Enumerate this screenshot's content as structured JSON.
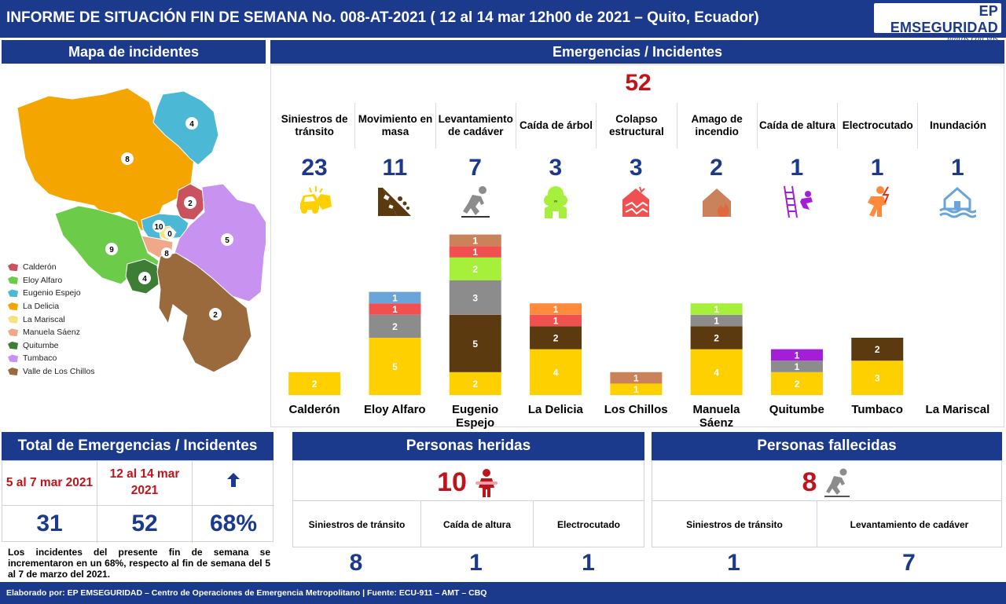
{
  "header": {
    "title": "INFORME DE SITUACIÓN FIN DE SEMANA No. 008-AT-2021 ( 12 al 14 mar 12h00 de 2021 – Quito, Ecuador)",
    "logo_text": "EP EMSEGURIDAD",
    "logo_signature": "juntos con vos"
  },
  "map": {
    "title": "Mapa de incidentes",
    "regions": [
      {
        "name": "La Delicia",
        "count": "8",
        "color": "#f5a500"
      },
      {
        "name": "Eugenio Espejo",
        "count": "4",
        "color": "#4bb8d6"
      },
      {
        "name": "Calderón",
        "count": "2",
        "color": "#c8525e"
      },
      {
        "name": "Eloy Alfaro",
        "count": "9",
        "color": "#6ccc4a"
      },
      {
        "name": "Tumbaco",
        "count": "5",
        "color": "#c792f0"
      },
      {
        "name": "Quitumbe",
        "count": "4",
        "color": "#3e7d35"
      },
      {
        "name": "Valle de Los Chillos",
        "count": "2",
        "color": "#9a6a3c"
      },
      {
        "name": "Manuela Sáenz",
        "count": "8",
        "color": "#f0a888"
      },
      {
        "name": "La Mariscal",
        "count": "0",
        "color": "#f5e27a"
      },
      {
        "name": "Eugenio Espejo centro",
        "count": "10",
        "color": "#4bb8d6"
      }
    ],
    "legend": [
      {
        "label": "Calderón",
        "color": "#c8525e"
      },
      {
        "label": "Eloy Alfaro",
        "color": "#6ccc4a"
      },
      {
        "label": "Eugenio Espejo",
        "color": "#4bb8d6"
      },
      {
        "label": "La Delicia",
        "color": "#f5a500"
      },
      {
        "label": "La Mariscal",
        "color": "#f5e27a"
      },
      {
        "label": "Manuela Sáenz",
        "color": "#f0a888"
      },
      {
        "label": "Quitumbe",
        "color": "#3e7d35"
      },
      {
        "label": "Tumbaco",
        "color": "#c792f0"
      },
      {
        "label": "Valle de Los Chillos",
        "color": "#9a6a3c"
      }
    ]
  },
  "emergencies": {
    "title": "Emergencias / Incidentes",
    "total": "52",
    "categories": [
      {
        "label": "Siniestros de tránsito",
        "count": "23",
        "icon": "car-crash-icon",
        "color": "#ffd000"
      },
      {
        "label": "Movimiento en masa",
        "count": "11",
        "icon": "landslide-icon",
        "color": "#5b3a10"
      },
      {
        "label": "Levantamiento de cadáver",
        "count": "7",
        "icon": "fallen-person-icon",
        "color": "#8c8c8c"
      },
      {
        "label": "Caída de árbol",
        "count": "3",
        "icon": "falling-tree-icon",
        "color": "#a6f03c"
      },
      {
        "label": "Colapso estructural",
        "count": "3",
        "icon": "structural-collapse-icon",
        "color": "#f05050"
      },
      {
        "label": "Amago de incendio",
        "count": "2",
        "icon": "house-fire-icon",
        "color": "#c9825a"
      },
      {
        "label": "Caída de altura",
        "count": "1",
        "icon": "fall-from-height-icon",
        "color": "#a31ed6"
      },
      {
        "label": "Electrocutado",
        "count": "1",
        "icon": "electrocution-icon",
        "color": "#ff8a3c"
      },
      {
        "label": "Inundación",
        "count": "1",
        "icon": "flood-icon",
        "color": "#6aa4d8"
      }
    ]
  },
  "chart_data": {
    "type": "bar",
    "stacked": true,
    "categories": [
      "Calderón",
      "Eloy Alfaro",
      "Eugenio Espejo",
      "La Delicia",
      "Los Chillos",
      "Manuela Sáenz",
      "Quitumbe",
      "Tumbaco",
      "La Mariscal"
    ],
    "series": [
      {
        "name": "Siniestros de tránsito",
        "color": "#ffd000",
        "values": [
          2,
          5,
          2,
          4,
          1,
          4,
          2,
          3,
          0
        ]
      },
      {
        "name": "Movimiento en masa",
        "color": "#5b3a10",
        "values": [
          0,
          0,
          5,
          2,
          0,
          2,
          0,
          2,
          0
        ]
      },
      {
        "name": "Levantamiento de cadáver",
        "color": "#8c8c8c",
        "values": [
          0,
          2,
          3,
          0,
          0,
          1,
          1,
          0,
          0
        ]
      },
      {
        "name": "Caída de árbol",
        "color": "#a6f03c",
        "values": [
          0,
          0,
          2,
          0,
          0,
          1,
          0,
          0,
          0
        ]
      },
      {
        "name": "Colapso estructural",
        "color": "#f05050",
        "values": [
          0,
          1,
          1,
          1,
          0,
          0,
          0,
          0,
          0
        ]
      },
      {
        "name": "Amago de incendio",
        "color": "#c9825a",
        "values": [
          0,
          0,
          1,
          0,
          1,
          0,
          0,
          0,
          0
        ]
      },
      {
        "name": "Caída de altura",
        "color": "#a31ed6",
        "values": [
          0,
          0,
          0,
          0,
          0,
          0,
          1,
          0,
          0
        ]
      },
      {
        "name": "Electrocutado",
        "color": "#ff8a3c",
        "values": [
          0,
          0,
          0,
          1,
          0,
          0,
          0,
          0,
          0
        ]
      },
      {
        "name": "Inundación",
        "color": "#6aa4d8",
        "values": [
          0,
          1,
          0,
          0,
          0,
          0,
          0,
          0,
          0
        ]
      }
    ]
  },
  "totals": {
    "title": "Total de Emergencias / Incidentes",
    "prev_period": "5 al 7 mar 2021",
    "curr_period": "12 al 14 mar 2021",
    "prev_value": "31",
    "curr_value": "52",
    "change": "68%",
    "trend_icon": "arrow-up-icon",
    "note": "Los incidentes del presente fin de semana se incrementaron en un 68%, respecto al fin de semana del 5 al 7 de marzo del 2021."
  },
  "injured": {
    "title": "Personas heridas",
    "total": "10",
    "icon": "injured-person-icon",
    "items": [
      {
        "label": "Siniestros de tránsito",
        "value": "8"
      },
      {
        "label": "Caída de altura",
        "value": "1"
      },
      {
        "label": "Electrocutado",
        "value": "1"
      }
    ]
  },
  "deceased": {
    "title": "Personas fallecidas",
    "total": "8",
    "icon": "fallen-person-icon",
    "items": [
      {
        "label": "Siniestros de tránsito",
        "value": "1"
      },
      {
        "label": "Levantamiento de cadáver",
        "value": "7"
      }
    ]
  },
  "footer": {
    "text": "Elaborado por: EP EMSEGURIDAD – Centro de Operaciones de Emergencia Metropolitano | Fuente: ECU-911 – AMT – CBQ"
  }
}
